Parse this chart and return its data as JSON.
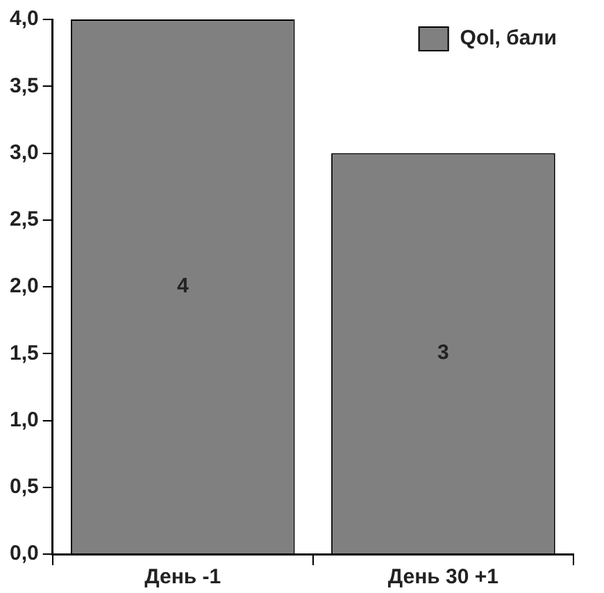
{
  "chart_data": {
    "type": "bar",
    "categories": [
      "День -1",
      "День 30 +1"
    ],
    "series": [
      {
        "name": "Qol, бали",
        "color": "#808080",
        "values": [
          4,
          3
        ]
      }
    ],
    "ylim": [
      0,
      4
    ],
    "yticks": [
      {
        "value": 0,
        "label": "0,0"
      },
      {
        "value": 0.5,
        "label": "0,5"
      },
      {
        "value": 1,
        "label": "1,0"
      },
      {
        "value": 1.5,
        "label": "1,5"
      },
      {
        "value": 2,
        "label": "2,0"
      },
      {
        "value": 2.5,
        "label": "2,5"
      },
      {
        "value": 3,
        "label": "3,0"
      },
      {
        "value": 3.5,
        "label": "3,5"
      },
      {
        "value": 4,
        "label": "4,0"
      }
    ],
    "grid": false,
    "legend": "top right",
    "data_labels": true
  }
}
